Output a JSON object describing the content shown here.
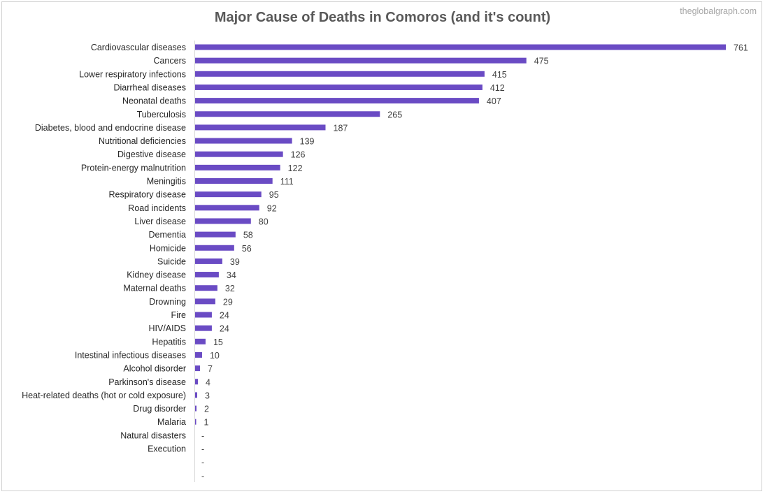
{
  "title": "Major Cause of Deaths in Comoros (and it's count)",
  "watermark": "theglobalgraph.com",
  "colors": {
    "bar": "#6a4bc4",
    "axis": "#d9d9d9",
    "text": "#262626"
  },
  "chart_data": {
    "type": "bar",
    "orientation": "horizontal",
    "title": "Major Cause of Deaths in Comoros (and it's count)",
    "xlabel": "",
    "ylabel": "",
    "xlim": [
      0,
      761
    ],
    "grid": false,
    "legend": "none",
    "categories": [
      "Cardiovascular diseases",
      "Cancers",
      "Lower respiratory infections",
      "Diarrheal diseases",
      "Neonatal deaths",
      "Tuberculosis",
      "Diabetes, blood and endocrine disease",
      "Nutritional deficiencies",
      "Digestive disease",
      "Protein-energy malnutrition",
      "Meningitis",
      "Respiratory disease",
      "Road incidents",
      "Liver disease",
      "Dementia",
      "Homicide",
      "Suicide",
      "Kidney disease",
      "Maternal deaths",
      "Drowning",
      "Fire",
      "HIV/AIDS",
      "Hepatitis",
      "Intestinal infectious diseases",
      "Alcohol disorder",
      "Parkinson's disease",
      "Heat-related deaths (hot or cold exposure)",
      "Drug disorder",
      "Malaria",
      "Natural disasters",
      "Execution",
      "",
      ""
    ],
    "values": [
      761,
      475,
      415,
      412,
      407,
      265,
      187,
      139,
      126,
      122,
      111,
      95,
      92,
      80,
      58,
      56,
      39,
      34,
      32,
      29,
      24,
      24,
      15,
      10,
      7,
      4,
      3,
      2,
      1,
      0,
      0,
      0,
      0
    ],
    "value_labels": [
      "761",
      "475",
      "415",
      "412",
      "407",
      "265",
      "187",
      "139",
      "126",
      "122",
      "111",
      "95",
      "92",
      "80",
      "58",
      "56",
      "39",
      "34",
      "32",
      "29",
      "24",
      "24",
      "15",
      "10",
      "7",
      "4",
      "3",
      "2",
      "1",
      "-",
      "-",
      "-",
      "-"
    ]
  }
}
